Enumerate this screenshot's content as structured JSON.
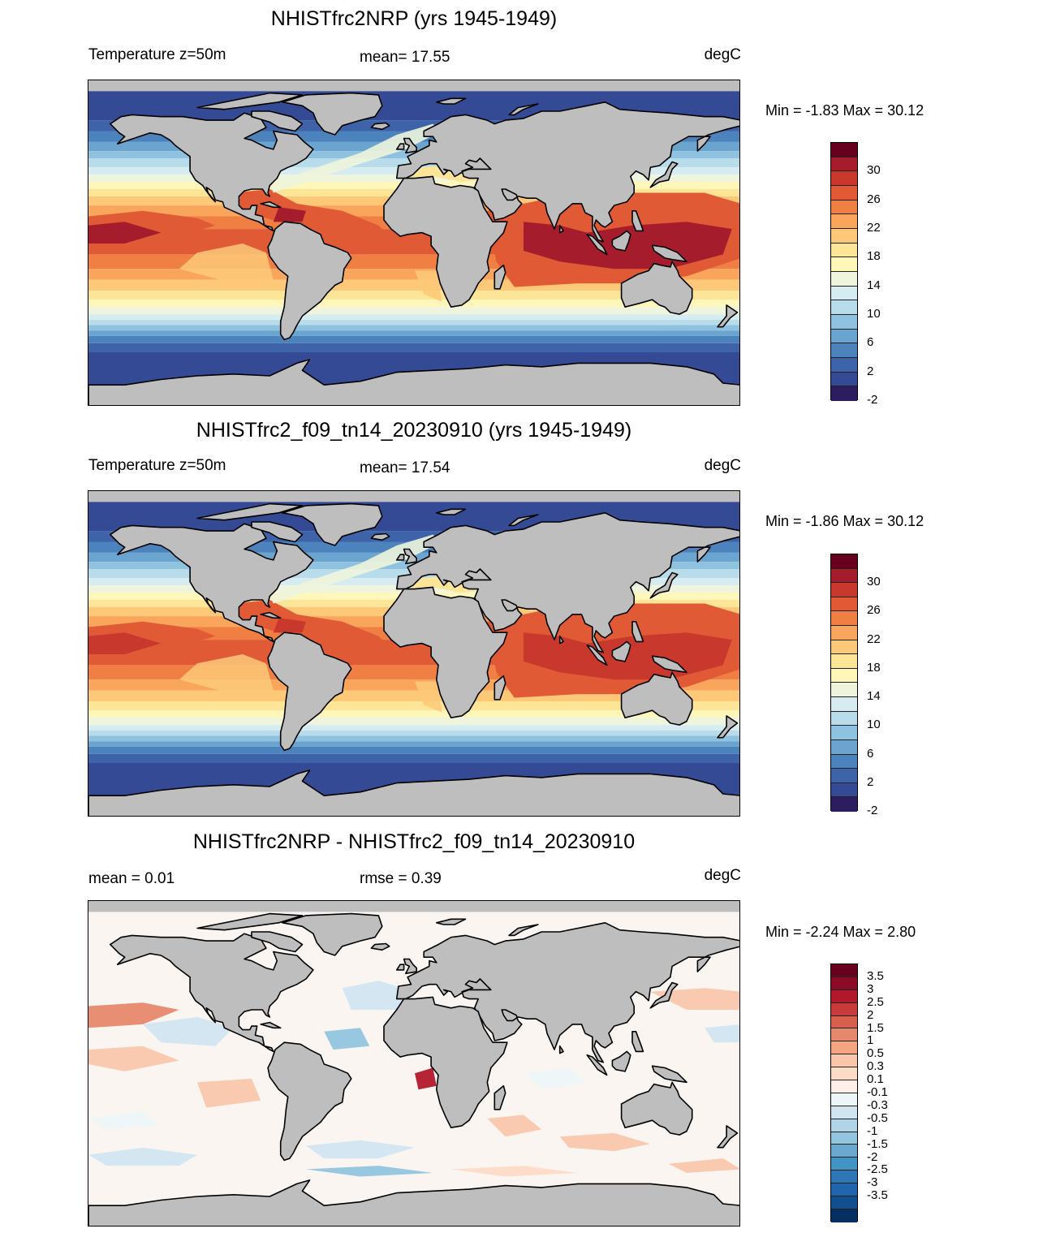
{
  "panels": [
    {
      "title": "NHISTfrc2NRP (yrs 1945-1949)",
      "left_label": "Temperature z=50m",
      "center_label": "mean=  17.55",
      "right_label": "degC",
      "minmax": "Min =  -1.83 Max =  30.12",
      "kind": "abs",
      "colorbar": {
        "labels": [
          "30",
          "26",
          "22",
          "18",
          "14",
          "10",
          "6",
          "2",
          "-2"
        ]
      }
    },
    {
      "title": "NHISTfrc2_f09_tn14_20230910 (yrs 1945-1949)",
      "left_label": "Temperature z=50m",
      "center_label": "mean=  17.54",
      "right_label": "degC",
      "minmax": "Min =  -1.86 Max =  30.12",
      "kind": "abs",
      "colorbar": {
        "labels": [
          "30",
          "26",
          "22",
          "18",
          "14",
          "10",
          "6",
          "2",
          "-2"
        ]
      }
    },
    {
      "title": "NHISTfrc2NRP - NHISTfrc2_f09_tn14_20230910",
      "left_label": "mean =   0.01",
      "center_label": "rmse =   0.39",
      "right_label": "degC",
      "minmax": "Min =  -2.24 Max =   2.80",
      "kind": "diff",
      "colorbar": {
        "labels": [
          "3.5",
          "3",
          "2.5",
          "2",
          "1.5",
          "1",
          "0.5",
          "0.3",
          "0.1",
          "-0.1",
          "-0.3",
          "-0.5",
          "-1",
          "-1.5",
          "-2",
          "-2.5",
          "-3",
          "-3.5"
        ]
      }
    }
  ],
  "colors": {
    "abs_colorbar": [
      "#67001f",
      "#a51d2c",
      "#c9382d",
      "#e05a35",
      "#f07f44",
      "#f9a55c",
      "#fdc979",
      "#fde597",
      "#fff6b9",
      "#eef5dc",
      "#d7ecf1",
      "#b8dcea",
      "#8fc2de",
      "#6aa4cf",
      "#4d83bd",
      "#3e63a9",
      "#344a95",
      "#2c1e5e"
    ],
    "diff_colorbar": [
      "#67001f",
      "#8b0a26",
      "#b2182b",
      "#c73b3c",
      "#d6604d",
      "#e6886c",
      "#f4a582",
      "#f9c6ac",
      "#fddbc7",
      "#fef0e7",
      "#eef5f8",
      "#d1e5f0",
      "#b2d4e7",
      "#92c5de",
      "#6aa8cf",
      "#4393c3",
      "#2f77b4",
      "#2166ac",
      "#124f8e",
      "#053061"
    ],
    "land": "#bebebe",
    "coast": "#000000"
  }
}
